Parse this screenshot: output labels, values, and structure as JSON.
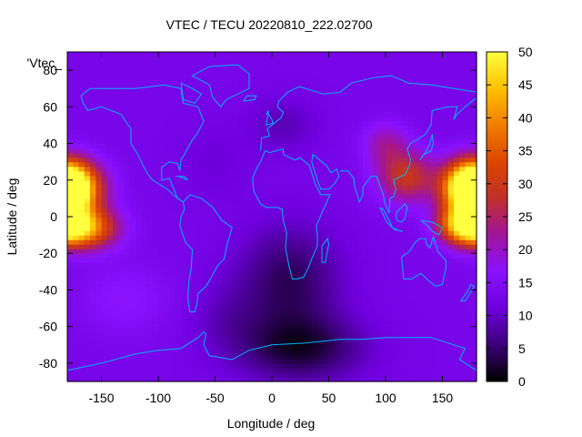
{
  "chart_data": {
    "type": "heatmap",
    "title": "VTEC / TECU 20220810_222.02700",
    "xlabel": "Longitude / deg",
    "ylabel": "Latitude / deg",
    "xlim": [
      -180,
      180
    ],
    "ylim": [
      -90,
      90
    ],
    "xticks": [
      -150,
      -100,
      -50,
      0,
      50,
      100,
      150
    ],
    "yticks": [
      -80,
      -60,
      -40,
      -20,
      0,
      20,
      40,
      60,
      80
    ],
    "series_label": "'Vtec_",
    "colorbar": {
      "range": [
        0,
        50
      ],
      "ticks": [
        0,
        5,
        10,
        15,
        20,
        25,
        30,
        35,
        40,
        45,
        50
      ],
      "palette": [
        "#000000",
        "#3c0078",
        "#6e00dc",
        "#8a12ff",
        "#a0149c",
        "#c0302a",
        "#dc4600",
        "#f07d00",
        "#ffc000",
        "#ffff40"
      ]
    },
    "grid_resolution_deg": {
      "lon": 5,
      "lat": 2.5
    },
    "background_level": 13,
    "features": [
      {
        "name": "equatorial-anomaly-pacific-north",
        "lon": -175,
        "lat": 17,
        "peak": 45
      },
      {
        "name": "equatorial-anomaly-pacific-south",
        "lon": -165,
        "lat": -5,
        "peak": 44
      },
      {
        "name": "equatorial-anomaly-west-pacific-north",
        "lon": 178,
        "lat": 17,
        "peak": 47
      },
      {
        "name": "equatorial-anomaly-west-pacific-south",
        "lon": 170,
        "lat": -5,
        "peak": 40
      },
      {
        "name": "asian-crest",
        "lon": 110,
        "lat": 20,
        "peak": 30
      },
      {
        "name": "night-trough-africa-europe",
        "lon": 10,
        "lat": -30,
        "min": 2
      },
      {
        "name": "night-trough-antarctic",
        "lon": 20,
        "lat": -75,
        "min": 1
      }
    ],
    "coastline_color": "#00b4ff"
  }
}
